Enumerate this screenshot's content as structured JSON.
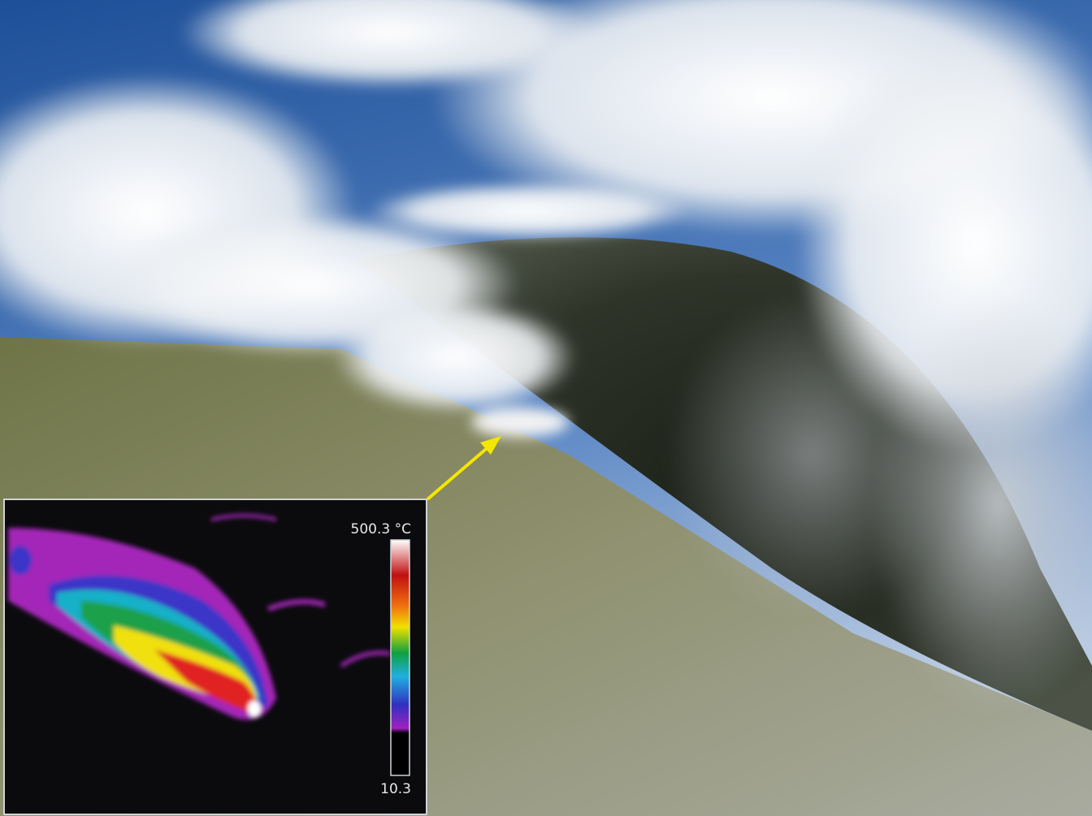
{
  "inset": {
    "scale_max_label": "500.3 °C",
    "scale_min_label": "10.3"
  }
}
